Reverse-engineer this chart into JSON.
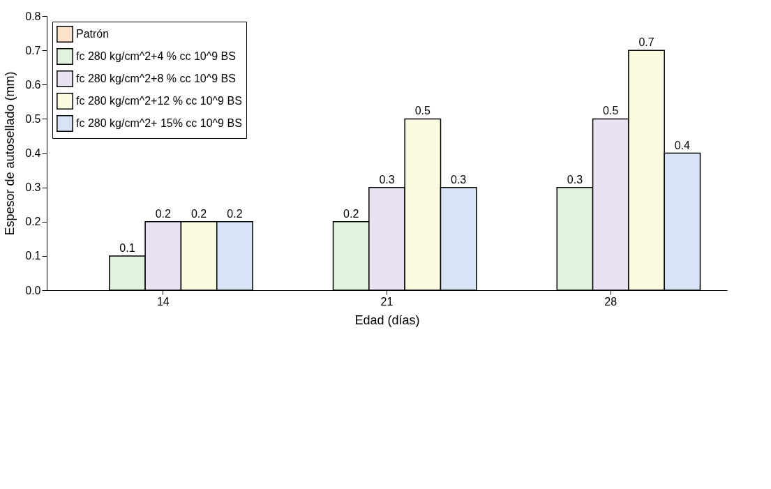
{
  "chart_data": {
    "type": "bar",
    "xlabel": "Edad (días)",
    "ylabel": "Espesor de autosellado (mm)",
    "categories": [
      "14",
      "21",
      "28"
    ],
    "series": [
      {
        "name": "Patrón",
        "color": "#fde3cc",
        "values": [
          null,
          null,
          null
        ]
      },
      {
        "name": "fc 280 kg/cm^2+4 % cc 10^9 BS",
        "color": "#e0f3dc",
        "values": [
          0.1,
          0.2,
          0.3
        ]
      },
      {
        "name": "fc 280 kg/cm^2+8 % cc 10^9 BS",
        "color": "#e8e2f2",
        "values": [
          0.2,
          0.3,
          0.5
        ]
      },
      {
        "name": "fc 280 kg/cm^2+12 % cc 10^9 BS",
        "color": "#fbfbe0",
        "values": [
          0.2,
          0.5,
          0.7
        ]
      },
      {
        "name": "fc 280 kg/cm^2+ 15% cc 10^9 BS",
        "color": "#d6e4f5",
        "values": [
          0.2,
          0.3,
          0.4
        ]
      }
    ],
    "ylim": [
      0,
      0.8
    ],
    "yticks": [
      {
        "value": 0,
        "label": "0.0"
      },
      0.1,
      0.2,
      0.3,
      0.4,
      0.5,
      0.6,
      0.7,
      0.8
    ],
    "data_labels": true,
    "grid": false,
    "legend": "top left"
  }
}
